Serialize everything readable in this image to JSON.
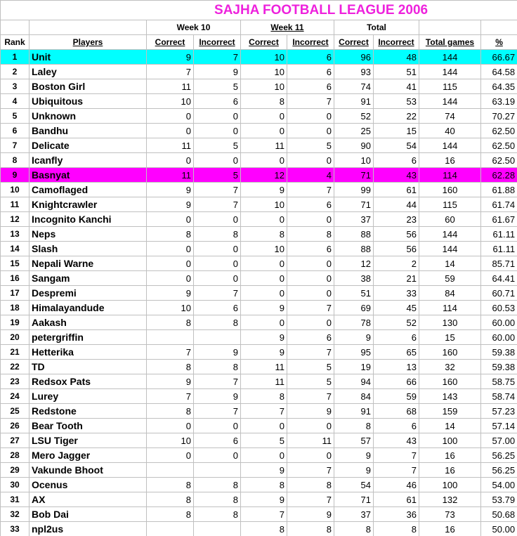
{
  "title": "SAJHA FOOTBALL LEAGUE 2006",
  "headers": {
    "week10": "Week 10",
    "week11": "Week 11",
    "total": "Total",
    "rank": "Rank",
    "players": "Players",
    "correct": "Correct",
    "incorrect": "Incorrect",
    "total_games": "Total games",
    "percent": "%"
  },
  "highlight_colors": {
    "1": "#00ffff",
    "9": "#ff00ff"
  },
  "rows": [
    [
      "1",
      "Unit",
      "9",
      "7",
      "10",
      "6",
      "96",
      "48",
      "144",
      "66.67"
    ],
    [
      "2",
      "Laley",
      "7",
      "9",
      "10",
      "6",
      "93",
      "51",
      "144",
      "64.58"
    ],
    [
      "3",
      "Boston Girl",
      "11",
      "5",
      "10",
      "6",
      "74",
      "41",
      "115",
      "64.35"
    ],
    [
      "4",
      "Ubiquitous",
      "10",
      "6",
      "8",
      "7",
      "91",
      "53",
      "144",
      "63.19"
    ],
    [
      "5",
      "Unknown",
      "0",
      "0",
      "0",
      "0",
      "52",
      "22",
      "74",
      "70.27"
    ],
    [
      "6",
      "Bandhu",
      "0",
      "0",
      "0",
      "0",
      "25",
      "15",
      "40",
      "62.50"
    ],
    [
      "7",
      "Delicate",
      "11",
      "5",
      "11",
      "5",
      "90",
      "54",
      "144",
      "62.50"
    ],
    [
      "8",
      "Icanfly",
      "0",
      "0",
      "0",
      "0",
      "10",
      "6",
      "16",
      "62.50"
    ],
    [
      "9",
      "Basnyat",
      "11",
      "5",
      "12",
      "4",
      "71",
      "43",
      "114",
      "62.28"
    ],
    [
      "10",
      "Camoflaged",
      "9",
      "7",
      "9",
      "7",
      "99",
      "61",
      "160",
      "61.88"
    ],
    [
      "11",
      "Knightcrawler",
      "9",
      "7",
      "10",
      "6",
      "71",
      "44",
      "115",
      "61.74"
    ],
    [
      "12",
      "Incognito Kanchi",
      "0",
      "0",
      "0",
      "0",
      "37",
      "23",
      "60",
      "61.67"
    ],
    [
      "13",
      "Neps",
      "8",
      "8",
      "8",
      "8",
      "88",
      "56",
      "144",
      "61.11"
    ],
    [
      "14",
      "Slash",
      "0",
      "0",
      "10",
      "6",
      "88",
      "56",
      "144",
      "61.11"
    ],
    [
      "15",
      "Nepali Warne",
      "0",
      "0",
      "0",
      "0",
      "12",
      "2",
      "14",
      "85.71"
    ],
    [
      "16",
      "Sangam",
      "0",
      "0",
      "0",
      "0",
      "38",
      "21",
      "59",
      "64.41"
    ],
    [
      "17",
      "Despremi",
      "9",
      "7",
      "0",
      "0",
      "51",
      "33",
      "84",
      "60.71"
    ],
    [
      "18",
      "Himalayandude",
      "10",
      "6",
      "9",
      "7",
      "69",
      "45",
      "114",
      "60.53"
    ],
    [
      "19",
      "Aakash",
      "8",
      "8",
      "0",
      "0",
      "78",
      "52",
      "130",
      "60.00"
    ],
    [
      "20",
      "petergriffin",
      "",
      "",
      "9",
      "6",
      "9",
      "6",
      "15",
      "60.00"
    ],
    [
      "21",
      "Hetterika",
      "7",
      "9",
      "9",
      "7",
      "95",
      "65",
      "160",
      "59.38"
    ],
    [
      "22",
      "TD",
      "8",
      "8",
      "11",
      "5",
      "19",
      "13",
      "32",
      "59.38"
    ],
    [
      "23",
      "Redsox Pats",
      "9",
      "7",
      "11",
      "5",
      "94",
      "66",
      "160",
      "58.75"
    ],
    [
      "24",
      "Lurey",
      "7",
      "9",
      "8",
      "7",
      "84",
      "59",
      "143",
      "58.74"
    ],
    [
      "25",
      "Redstone",
      "8",
      "7",
      "7",
      "9",
      "91",
      "68",
      "159",
      "57.23"
    ],
    [
      "26",
      "Bear Tooth",
      "0",
      "0",
      "0",
      "0",
      "8",
      "6",
      "14",
      "57.14"
    ],
    [
      "27",
      "LSU Tiger",
      "10",
      "6",
      "5",
      "11",
      "57",
      "43",
      "100",
      "57.00"
    ],
    [
      "28",
      "Mero Jagger",
      "0",
      "0",
      "0",
      "0",
      "9",
      "7",
      "16",
      "56.25"
    ],
    [
      "29",
      "Vakunde Bhoot",
      "",
      "",
      "9",
      "7",
      "9",
      "7",
      "16",
      "56.25"
    ],
    [
      "30",
      "Ocenus",
      "8",
      "8",
      "8",
      "8",
      "54",
      "46",
      "100",
      "54.00"
    ],
    [
      "31",
      "AX",
      "8",
      "8",
      "9",
      "7",
      "71",
      "61",
      "132",
      "53.79"
    ],
    [
      "32",
      "Bob Dai",
      "8",
      "8",
      "7",
      "9",
      "37",
      "36",
      "73",
      "50.68"
    ],
    [
      "33",
      "npl2us",
      "",
      "",
      "8",
      "8",
      "8",
      "8",
      "16",
      "50.00"
    ]
  ]
}
